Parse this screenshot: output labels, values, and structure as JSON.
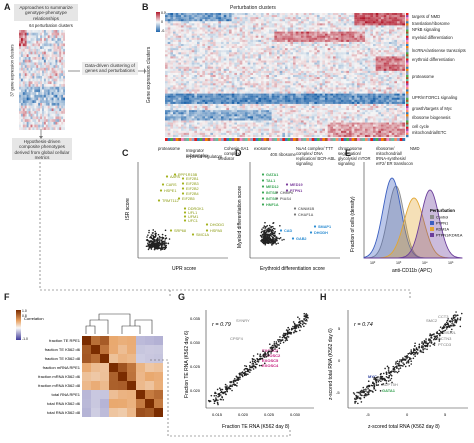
{
  "panels": {
    "A": "A",
    "B": "B",
    "C": "C",
    "D": "D",
    "E": "E",
    "F": "F",
    "G": "G",
    "H": "H"
  },
  "panel_a": {
    "approaches_title": "Approaches to summarize genotype-phenotype relationships",
    "perturbation_clusters": "64 perturbation clusters",
    "gene_expression_clusters": "37 gene expression clusters",
    "data_driven_box": "Data-driven clustering of genes and perturbations",
    "hypothesis_box": "Hypothesis-driven composite phenotypes derived from global cellular metrics"
  },
  "panel_b": {
    "top_label": "Perturbation clusters",
    "y_label": "Gene expression clusters",
    "legend_title": "mean z-score",
    "legend_ticks": [
      "0.5",
      "0",
      "-0.5"
    ],
    "right_labels": [
      "targets of NMD",
      "translation/ribosome",
      "NFkB signaling",
      "myeloid differentiation",
      "lncRNA/antisense transcripts",
      "erythroid differentiation",
      "proteasome",
      "UPR/mTORC1 signaling",
      "growth/targets of Myc",
      "ribosome biogenesis",
      "cell cycle",
      "mitochondrial/ETC"
    ],
    "bottom_labels": [
      "proteasome",
      "Integrator subcomplex",
      "erythroid regulators",
      "Mediator",
      "Cohesin-SA1 complex",
      "exosome",
      "40S ribosome",
      "NuA4 complex/ TTT complex/ DNA replication/ BCR-ABL signaling",
      "chromosome segregation/ glycolysis/ mTOR signaling",
      "ribosome/ mitochondrial/ tRNA-synthesis/ eIF2/ ER translocon",
      "NMD"
    ]
  },
  "panel_c": {
    "xlabel": "UPR score",
    "ylabel": "ISR score",
    "labels": [
      "EIF2B1",
      "EIF2B3",
      "EIF2B2",
      "EIF2B4",
      "EIF2B5",
      "HSPA5",
      "DHODG",
      "SMC1A",
      "DDRGK1",
      "UFL1",
      "UFM1",
      "UFC1",
      "CARS",
      "TRMT112",
      "HSPE1",
      "AARS",
      "PPP1R15B",
      "SRP68"
    ]
  },
  "panel_d": {
    "xlabel": "Erythroid differentiation score",
    "ylabel": "Myeloid differentiation score",
    "labels_green": [
      "GATA1",
      "TAL1",
      "MED12",
      "INTS8",
      "INTS6",
      "HNF1A"
    ],
    "labels_purple": [
      "MED19",
      "PTPN1"
    ],
    "labels_blue": [
      "GAB2",
      "CAD",
      "DHODH",
      "SMAP1"
    ],
    "labels_gray": [
      "CHMP6",
      "PIAS4",
      "CNNM1B",
      "CHAF1A"
    ]
  },
  "panel_e": {
    "xlabel": "anti-CD11b (APC)",
    "ylabel": "Fraction of cells (density)",
    "legend_title": "Perturbation",
    "legend": [
      {
        "name": "Control",
        "color": "#8c8c8c"
      },
      {
        "name": "PTPN1",
        "color": "#3b5fc0"
      },
      {
        "name": "KDM1A",
        "color": "#e2a632"
      },
      {
        "name": "PTPN1/KDM1A",
        "color": "#6a3d9a"
      }
    ],
    "x_ticks": [
      "10²",
      "10³",
      "10⁴",
      "10⁵"
    ]
  },
  "panel_f": {
    "legend_title": "Correlation",
    "legend_ticks": [
      "1.0",
      "0.8",
      "0.6",
      "0.4",
      "0.2",
      "-1.0"
    ],
    "rows": [
      "fraction TE RPE1",
      "fraction TE K562 d6",
      "fraction TE K562 d8",
      "fraction mRNA RPE1",
      "fraction mRNA K562 d6",
      "fraction mRNA K562 d8",
      "total RNA RPE1",
      "total RNA K562 d6",
      "total RNA K562 d8"
    ]
  },
  "panel_g": {
    "r_label": "r = 0.79",
    "xlabel": "Fraction TE RNA (K562 day 8)",
    "ylabel": "Fraction TE RNA (K562 day 6)",
    "x_ticks": [
      "0.015",
      "0.020",
      "0.025",
      "0.030"
    ],
    "y_ticks": [
      "0.035",
      "0.030",
      "0.025",
      "0.020"
    ],
    "labels": [
      "SYNRY",
      "CPSF4",
      "EXOSC3",
      "EXOSC2",
      "EXOSC5",
      "EXOSC4"
    ]
  },
  "panel_h": {
    "r_label": "r = 0.74",
    "xlabel": "z-scored total RNA (K562 day 8)",
    "ylabel": "z-scored total RNA (K562 day 6)",
    "x_ticks": [
      "-5",
      "0",
      "5"
    ],
    "y_ticks": [
      "5",
      "0",
      "-5"
    ],
    "labels": [
      "SMC2",
      "CCT3",
      "MMS22L",
      "DCTN3",
      "PTCD3",
      "MYC",
      "TAF1",
      "SUPT5H",
      "GATA1"
    ]
  }
}
